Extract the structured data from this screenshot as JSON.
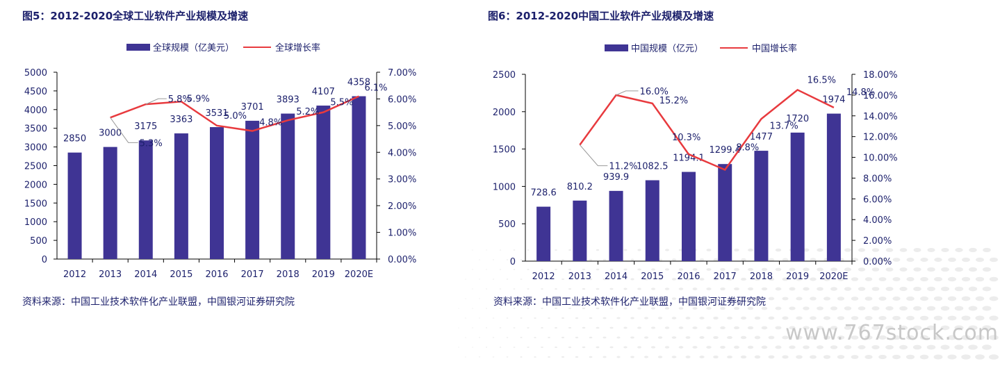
{
  "watermark": "www.767stock.com",
  "colors": {
    "bar": "#3f3494",
    "line": "#e83a3e",
    "text": "#1b1f6b",
    "leader": "#9a9a9a"
  },
  "figures": [
    {
      "title": "图5：2012-2020全球工业软件产业规模及增速",
      "source": "资料来源：中国工业技术软件化产业联盟，中国银河证券研究院",
      "chart_data": {
        "type": "bar",
        "categories": [
          "2012",
          "2013",
          "2014",
          "2015",
          "2016",
          "2017",
          "2018",
          "2019",
          "2020E"
        ],
        "series": [
          {
            "name": "全球规模（亿美元）",
            "kind": "bar",
            "axis": "left",
            "values": [
              2850,
              3000,
              3175,
              3363,
              3531,
              3701,
              3893,
              4107,
              4358
            ],
            "labels": [
              "2850",
              "3000",
              "3175",
              "3363",
              "3531",
              "3701",
              "3893",
              "4107",
              "4358"
            ]
          },
          {
            "name": "全球增长率",
            "kind": "line",
            "axis": "right",
            "values": [
              null,
              5.3,
              5.8,
              5.9,
              5.0,
              4.8,
              5.2,
              5.5,
              6.1
            ],
            "labels": [
              "",
              "5.3%",
              "5.8%",
              "5.9%",
              "5.0%",
              "4.8%",
              "5.2%",
              "5.5%",
              "6.1%"
            ]
          }
        ],
        "y_left": {
          "min": 0,
          "max": 5000,
          "ticks": [
            "0",
            "500",
            "1000",
            "1500",
            "2000",
            "2500",
            "3000",
            "3500",
            "4000",
            "4500",
            "5000"
          ]
        },
        "y_right": {
          "min": 0,
          "max": 7,
          "ticks": [
            "0.00%",
            "1.00%",
            "2.00%",
            "3.00%",
            "4.00%",
            "5.00%",
            "6.00%",
            "7.00%"
          ]
        },
        "legend": "top-center",
        "grid": false
      }
    },
    {
      "title": "图6：2012-2020中国工业软件产业规模及增速",
      "source": "资料来源：中国工业技术软件化产业联盟，中国银河证券研究院",
      "chart_data": {
        "type": "bar",
        "categories": [
          "2012",
          "2013",
          "2014",
          "2015",
          "2016",
          "2017",
          "2018",
          "2019",
          "2020E"
        ],
        "series": [
          {
            "name": "中国规模（亿元）",
            "kind": "bar",
            "axis": "left",
            "values": [
              728.6,
              810.2,
              939.9,
              1082.5,
              1194.1,
              1299.4,
              1477,
              1720,
              1974
            ],
            "labels": [
              "728.6",
              "810.2",
              "939.9",
              "1082.5",
              "1194.1",
              "1299.4",
              "1477",
              "1720",
              "1974"
            ]
          },
          {
            "name": "中国增长率",
            "kind": "line",
            "axis": "right",
            "values": [
              null,
              11.2,
              16.0,
              15.2,
              10.3,
              8.8,
              13.7,
              16.5,
              14.8
            ],
            "labels": [
              "",
              "11.2%",
              "16.0%",
              "15.2%",
              "10.3%",
              "8.8%",
              "13.7%",
              "16.5%",
              "14.8%"
            ]
          }
        ],
        "y_left": {
          "min": 0,
          "max": 2500,
          "ticks": [
            "0",
            "500",
            "1000",
            "1500",
            "2000",
            "2500"
          ]
        },
        "y_right": {
          "min": 0,
          "max": 18,
          "ticks": [
            "0.00%",
            "2.00%",
            "4.00%",
            "6.00%",
            "8.00%",
            "10.00%",
            "12.00%",
            "14.00%",
            "16.00%",
            "18.00%"
          ]
        },
        "legend": "top-center",
        "grid": false
      }
    }
  ]
}
